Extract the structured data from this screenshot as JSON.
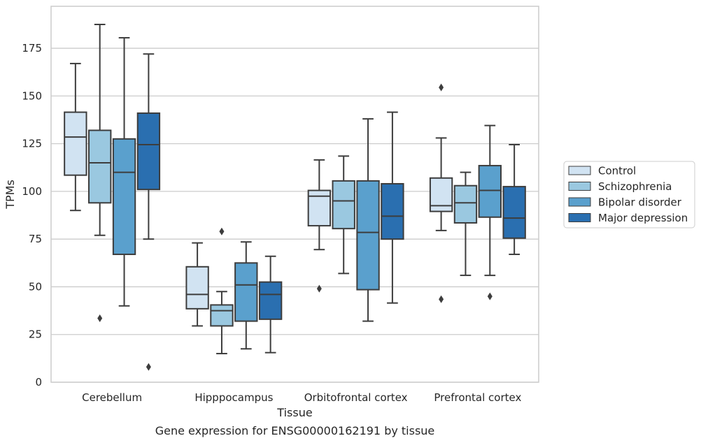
{
  "caption": "Gene expression for ENSG00000162191 by tissue",
  "chart_data": {
    "type": "box",
    "xlabel": "Tissue",
    "ylabel": "TPMs",
    "ylim": [
      0,
      197
    ],
    "yticks": [
      0,
      25,
      50,
      75,
      100,
      125,
      150,
      175
    ],
    "grid": "horizontal",
    "legend_position": "right",
    "categories": [
      "Cerebellum",
      "Hipppocampus",
      "Orbitofrontal cortex",
      "Prefrontal cortex"
    ],
    "series": [
      {
        "name": "Control",
        "color": "#d1e3f2",
        "boxes": [
          {
            "whislo": 90,
            "q1": 108.5,
            "med": 128.5,
            "q3": 141.5,
            "whishi": 167,
            "fliers": []
          },
          {
            "whislo": 29.5,
            "q1": 38.5,
            "med": 46,
            "q3": 60.5,
            "whishi": 73,
            "fliers": []
          },
          {
            "whislo": 69.5,
            "q1": 82,
            "med": 97.5,
            "q3": 100.5,
            "whishi": 116.5,
            "fliers": [
              49
            ]
          },
          {
            "whislo": 79.5,
            "q1": 89.5,
            "med": 92.5,
            "q3": 107,
            "whishi": 128,
            "fliers": [
              43.5,
              154.5
            ]
          }
        ]
      },
      {
        "name": "Schizophrenia",
        "color": "#9ac8e0",
        "boxes": [
          {
            "whislo": 77,
            "q1": 94,
            "med": 115,
            "q3": 132,
            "whishi": 187.5,
            "fliers": [
              33.5
            ]
          },
          {
            "whislo": 15,
            "q1": 29.5,
            "med": 37.5,
            "q3": 40.5,
            "whishi": 47.5,
            "fliers": [
              79
            ]
          },
          {
            "whislo": 57,
            "q1": 80.5,
            "med": 95,
            "q3": 105.5,
            "whishi": 118.5,
            "fliers": []
          },
          {
            "whislo": 56,
            "q1": 83.5,
            "med": 94,
            "q3": 103,
            "whishi": 110,
            "fliers": []
          }
        ]
      },
      {
        "name": "Bipolar disorder",
        "color": "#5aa0cd",
        "boxes": [
          {
            "whislo": 40,
            "q1": 67,
            "med": 110,
            "q3": 127.5,
            "whishi": 180.5,
            "fliers": []
          },
          {
            "whislo": 17.5,
            "q1": 32,
            "med": 51,
            "q3": 62.5,
            "whishi": 73.5,
            "fliers": []
          },
          {
            "whislo": 32,
            "q1": 48.5,
            "med": 78.5,
            "q3": 105.5,
            "whishi": 138,
            "fliers": []
          },
          {
            "whislo": 56,
            "q1": 86.5,
            "med": 100.5,
            "q3": 113.5,
            "whishi": 134.5,
            "fliers": [
              45
            ]
          }
        ]
      },
      {
        "name": "Major depression",
        "color": "#2a6fb0",
        "boxes": [
          {
            "whislo": 75,
            "q1": 101,
            "med": 124.5,
            "q3": 141,
            "whishi": 172,
            "fliers": [
              8
            ]
          },
          {
            "whislo": 15.5,
            "q1": 33,
            "med": 46,
            "q3": 52.5,
            "whishi": 66,
            "fliers": []
          },
          {
            "whislo": 41.5,
            "q1": 75,
            "med": 87,
            "q3": 104,
            "whishi": 141.5,
            "fliers": []
          },
          {
            "whislo": 67,
            "q1": 75.5,
            "med": 86,
            "q3": 102.5,
            "whishi": 124.5,
            "fliers": []
          }
        ]
      }
    ]
  }
}
